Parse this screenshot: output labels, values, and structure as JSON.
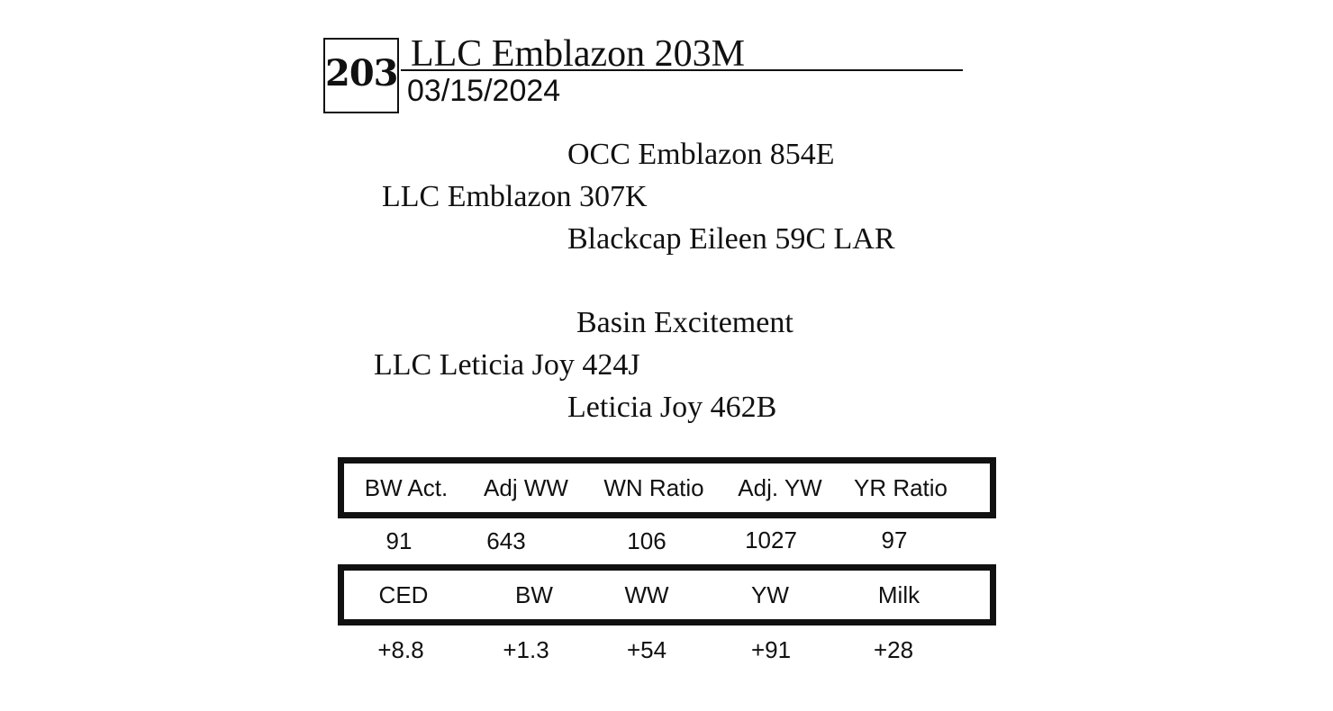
{
  "lot": {
    "number": "203",
    "name": "LLC Emblazon 203M",
    "birth_date": "03/15/2024"
  },
  "pedigree": {
    "sire_sire": "OCC Emblazon 854E",
    "sire": "LLC Emblazon 307K",
    "sire_dam": "Blackcap Eileen 59C LAR",
    "dam_sire": "Basin Excitement",
    "dam": "LLC Leticia Joy 424J",
    "dam_dam": "Leticia Joy 462B"
  },
  "performance": {
    "headers": [
      "BW Act.",
      "Adj WW",
      "WN Ratio",
      "Adj. YW",
      "YR Ratio"
    ],
    "values": [
      "91",
      "643",
      "106",
      "1027",
      "97"
    ]
  },
  "epds": {
    "headers": [
      "CED",
      "BW",
      "WW",
      "YW",
      "Milk"
    ],
    "values": [
      "+8.8",
      "+1.3",
      "+54",
      "+91",
      "+28"
    ]
  }
}
